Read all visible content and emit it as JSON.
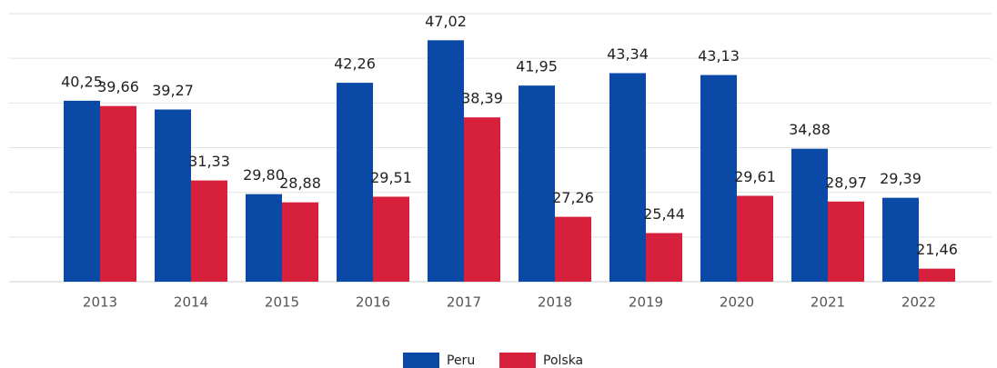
{
  "chart_data": {
    "type": "bar",
    "categories": [
      "2013",
      "2014",
      "2015",
      "2016",
      "2017",
      "2018",
      "2019",
      "2020",
      "2021",
      "2022"
    ],
    "series": [
      {
        "name": "Peru",
        "color": "#0a4aa6",
        "values": [
          40.25,
          39.27,
          29.8,
          42.26,
          47.02,
          41.95,
          43.34,
          43.13,
          34.88,
          29.39
        ],
        "value_labels": [
          "40,25",
          "39,27",
          "29,80",
          "42,26",
          "47,02",
          "41,95",
          "43,34",
          "43,13",
          "34,88",
          "29,39"
        ]
      },
      {
        "name": "Polska",
        "color": "#d7203c",
        "values": [
          39.66,
          31.33,
          28.88,
          29.51,
          38.39,
          27.26,
          25.44,
          29.61,
          28.97,
          21.46
        ],
        "value_labels": [
          "39,66",
          "31,33",
          "28,88",
          "29,51",
          "38,39",
          "27,26",
          "25,44",
          "29,61",
          "28,97",
          "21,46"
        ]
      }
    ],
    "ylim": [
      20,
      50
    ],
    "yticks": [
      20,
      25,
      30,
      35,
      40,
      45,
      50
    ],
    "grid": true,
    "legend": "bottom"
  }
}
